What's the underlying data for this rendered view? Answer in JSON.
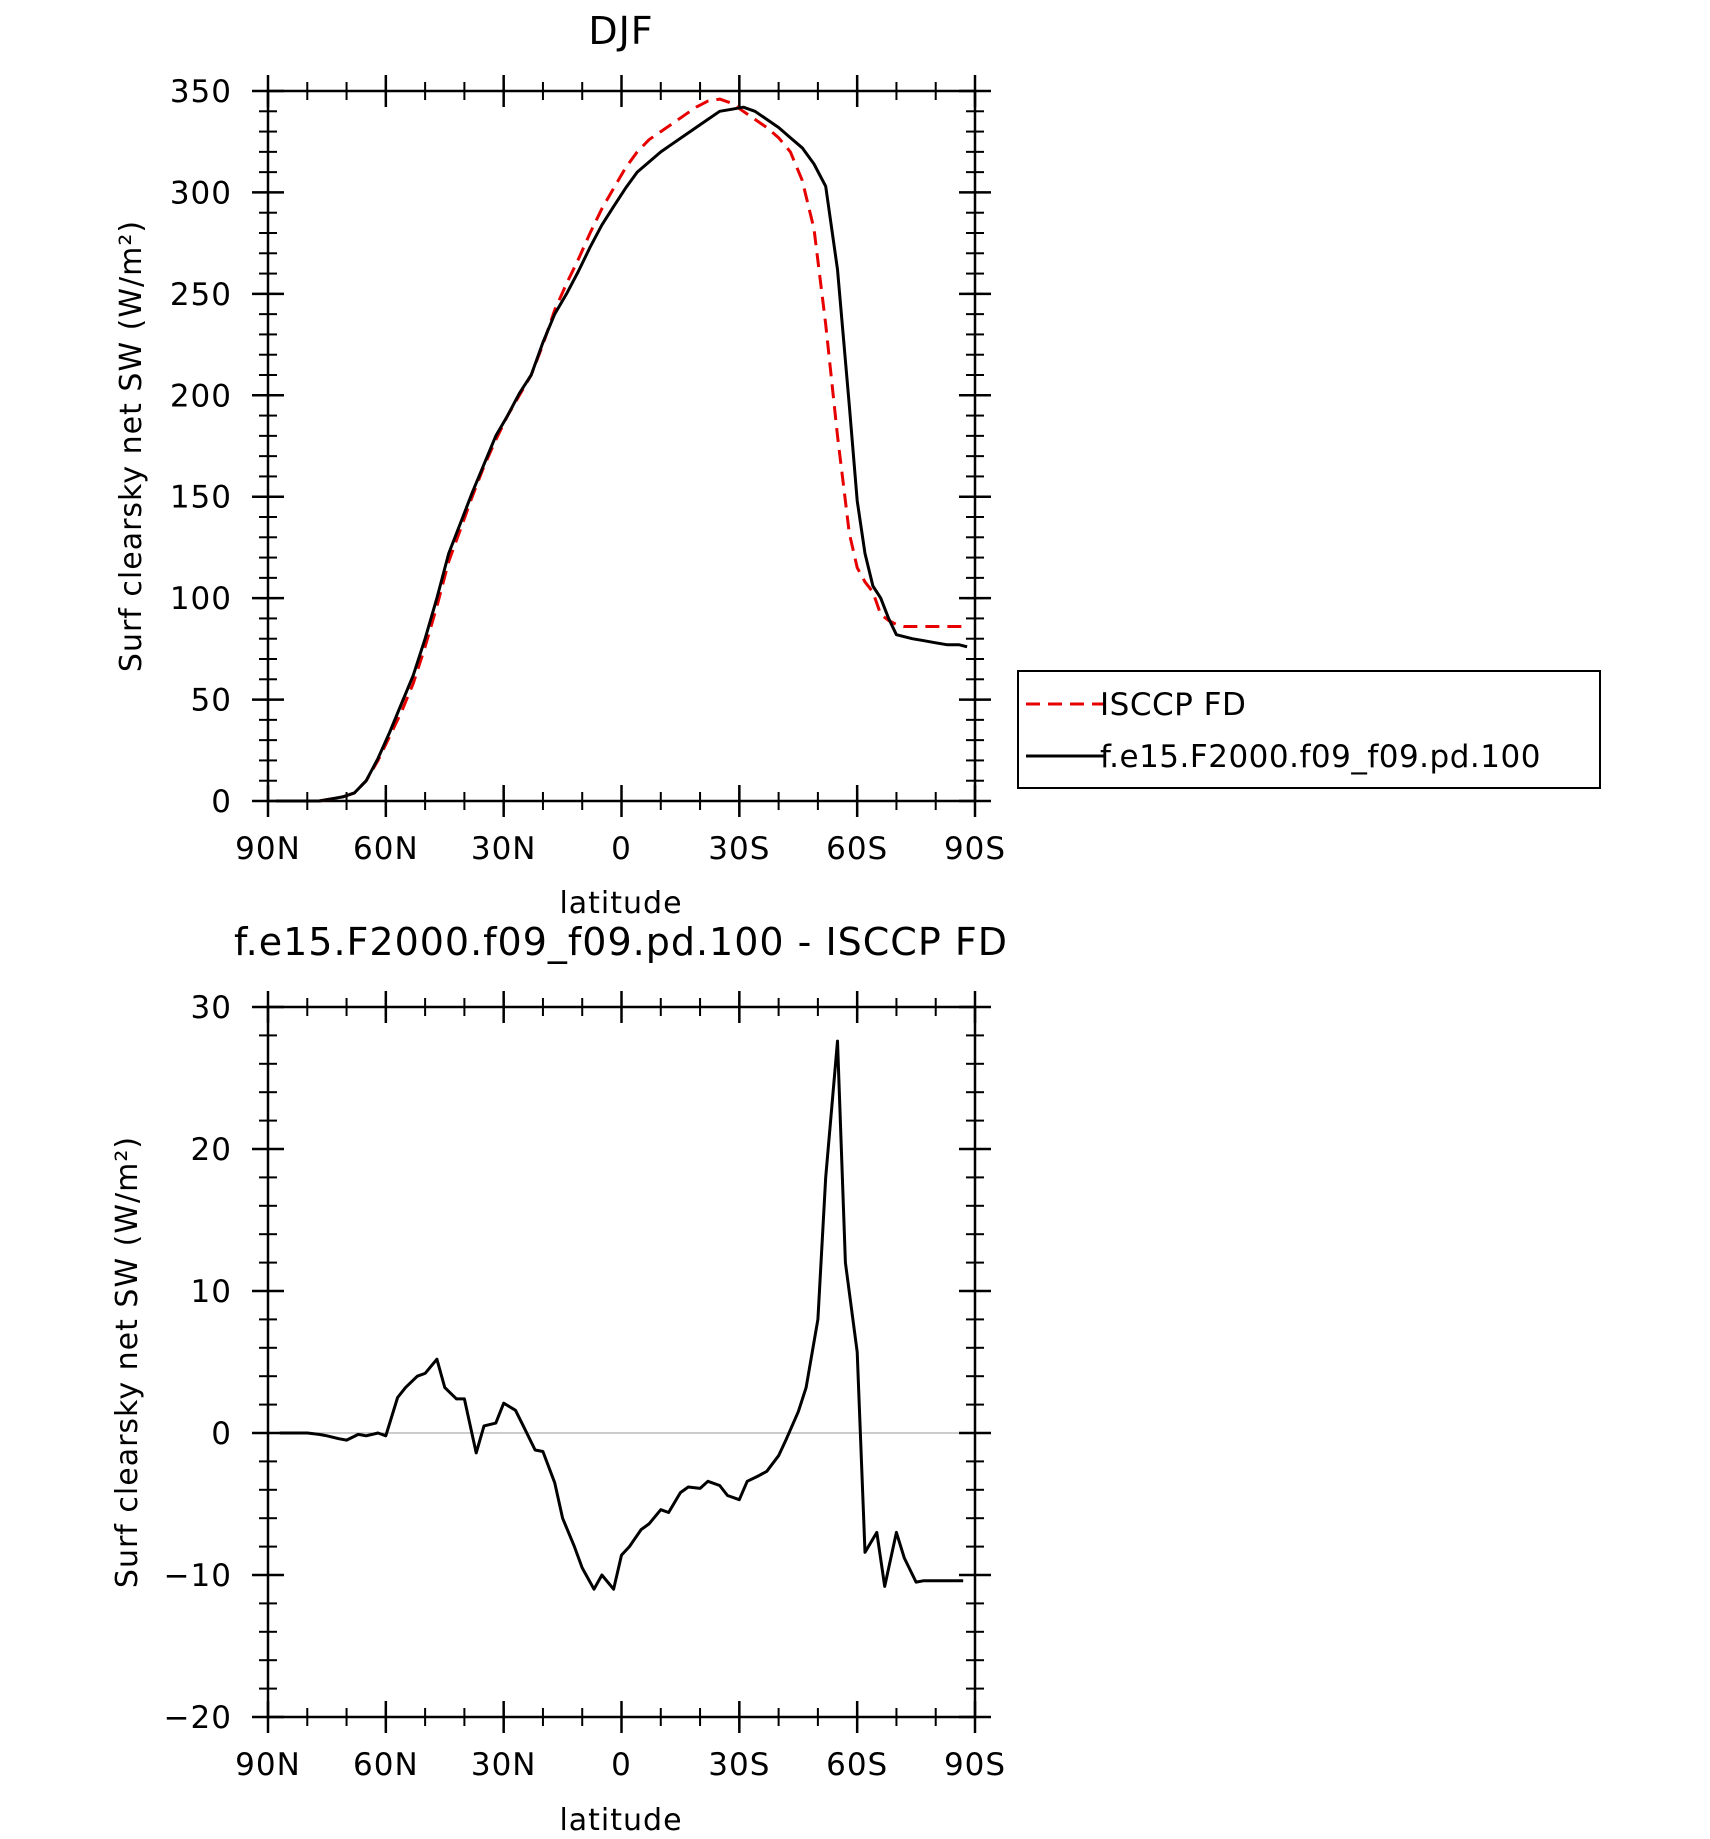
{
  "colors": {
    "obs": "#e60000",
    "model": "#000000",
    "zero_line": "#999999"
  },
  "chart_data": [
    {
      "type": "line",
      "title": "DJF",
      "xlabel": "latitude",
      "ylabel": "Surf clearsky net SW (W/m²)",
      "xlim": [
        90,
        -90
      ],
      "ylim": [
        0,
        350
      ],
      "x_ticks": [
        90,
        60,
        30,
        0,
        -30,
        -60,
        -90
      ],
      "x_tick_labels": [
        "90N",
        "60N",
        "30N",
        "0",
        "30S",
        "60S",
        "90S"
      ],
      "y_ticks": [
        0,
        50,
        100,
        150,
        200,
        250,
        300,
        350
      ],
      "y_tick_labels": [
        "0",
        "50",
        "100",
        "150",
        "200",
        "250",
        "300",
        "350"
      ],
      "legend": {
        "placement": "right",
        "entries": [
          "ISCCP FD",
          "f.e15.F2000.f09_f09.pd.100"
        ]
      },
      "series": [
        {
          "name": "ISCCP FD",
          "style": "dashed",
          "color": "#e60000",
          "x": [
            88,
            84,
            80,
            77,
            74,
            71,
            68,
            65,
            62,
            59,
            56,
            53,
            50,
            47,
            44,
            41,
            38,
            35,
            32,
            29,
            26,
            23,
            20,
            17,
            14,
            11,
            8,
            5,
            2,
            -1,
            -4,
            -7,
            -10,
            -13,
            -16,
            -19,
            -22,
            -25,
            -28,
            -31,
            -34,
            -37,
            -40,
            -43,
            -46,
            -49,
            -52,
            -55,
            -58,
            -60,
            -62,
            -64,
            -66,
            -68,
            -70,
            -72,
            -74,
            -77,
            -80,
            -83,
            -86,
            -88
          ],
          "y": [
            0,
            0,
            0,
            0,
            1,
            2,
            4,
            10,
            20,
            32,
            44,
            58,
            76,
            96,
            118,
            134,
            150,
            165,
            178,
            190,
            200,
            210,
            225,
            242,
            255,
            267,
            280,
            292,
            302,
            312,
            320,
            326,
            330,
            334,
            338,
            342,
            345,
            346,
            344,
            340,
            336,
            332,
            327,
            320,
            306,
            282,
            235,
            180,
            132,
            115,
            108,
            103,
            92,
            89,
            87,
            86,
            86,
            86,
            86,
            86,
            86,
            86
          ]
        },
        {
          "name": "f.e15.F2000.f09_f09.pd.100",
          "style": "solid",
          "color": "#000000",
          "x": [
            88,
            84,
            80,
            77,
            74,
            71,
            68,
            65,
            62,
            59,
            56,
            53,
            50,
            47,
            44,
            41,
            38,
            35,
            32,
            29,
            26,
            23,
            20,
            17,
            14,
            11,
            8,
            5,
            2,
            -1,
            -4,
            -7,
            -10,
            -13,
            -16,
            -19,
            -22,
            -25,
            -28,
            -31,
            -34,
            -37,
            -40,
            -43,
            -46,
            -49,
            -52,
            -55,
            -58,
            -60,
            -62,
            -64,
            -66,
            -68,
            -70,
            -72,
            -74,
            -77,
            -80,
            -83,
            -86,
            -88
          ],
          "y": [
            0,
            0,
            0,
            0,
            1,
            2,
            4,
            10,
            21,
            34,
            48,
            62,
            80,
            100,
            122,
            137,
            152,
            166,
            180,
            190,
            201,
            210,
            226,
            240,
            250,
            261,
            273,
            284,
            293,
            302,
            310,
            315,
            320,
            324,
            328,
            332,
            336,
            340,
            341,
            342,
            340,
            336,
            332,
            327,
            322,
            314,
            303,
            262,
            195,
            148,
            122,
            106,
            100,
            90,
            82,
            81,
            80,
            79,
            78,
            77,
            77,
            76
          ]
        }
      ]
    },
    {
      "type": "line",
      "title": "f.e15.F2000.f09_f09.pd.100 - ISCCP FD",
      "xlabel": "latitude",
      "ylabel": "Surf clearsky net SW (W/m²)",
      "xlim": [
        90,
        -90
      ],
      "ylim": [
        -20,
        30
      ],
      "x_ticks": [
        90,
        60,
        30,
        0,
        -30,
        -60,
        -90
      ],
      "x_tick_labels": [
        "90N",
        "60N",
        "30N",
        "0",
        "30S",
        "60S",
        "90S"
      ],
      "y_ticks": [
        -20,
        -10,
        0,
        10,
        20,
        30
      ],
      "y_tick_labels": [
        "−20",
        "−10",
        "0",
        "10",
        "20",
        "30"
      ],
      "zero_line": true,
      "series": [
        {
          "style": "solid",
          "color": "#000000",
          "x": [
            87,
            83,
            80,
            77,
            75,
            72,
            70,
            67,
            65,
            62,
            60,
            57,
            55,
            52,
            50,
            47,
            45,
            42,
            40,
            37,
            35,
            32,
            30,
            27,
            25,
            22,
            20,
            17,
            15,
            12,
            10,
            7,
            5,
            2,
            0,
            -2,
            -5,
            -7,
            -10,
            -12,
            -15,
            -17,
            -20,
            -22,
            -25,
            -27,
            -30,
            -32,
            -35,
            -37,
            -40,
            -42,
            -45,
            -47,
            -50,
            -52,
            -55,
            -57,
            -60,
            -62,
            -65,
            -67,
            -70,
            -72,
            -75,
            -77,
            -80,
            -82,
            -85,
            -87
          ],
          "y": [
            0,
            0,
            0,
            -0.1,
            -0.2,
            -0.4,
            -0.5,
            -0.1,
            -0.2,
            0,
            -0.2,
            2.5,
            3.2,
            4.0,
            4.2,
            5.2,
            3.2,
            2.4,
            2.4,
            -1.4,
            0.5,
            0.7,
            2.1,
            1.6,
            0.5,
            -1.2,
            -1.3,
            -3.5,
            -6.0,
            -8.0,
            -9.5,
            -11.0,
            -10.0,
            -11.0,
            -8.6,
            -8.0,
            -6.8,
            -6.4,
            -5.4,
            -5.6,
            -4.2,
            -3.8,
            -3.9,
            -3.4,
            -3.7,
            -4.4,
            -4.7,
            -3.4,
            -3.0,
            -2.7,
            -1.6,
            -0.4,
            1.5,
            3.2,
            8.0,
            18.0,
            27.6,
            12.0,
            5.7,
            -8.4,
            -7.0,
            -10.8,
            -7.0,
            -8.8,
            -10.5,
            -10.4,
            -10.4,
            -10.4,
            -10.4,
            -10.4
          ]
        }
      ]
    }
  ]
}
